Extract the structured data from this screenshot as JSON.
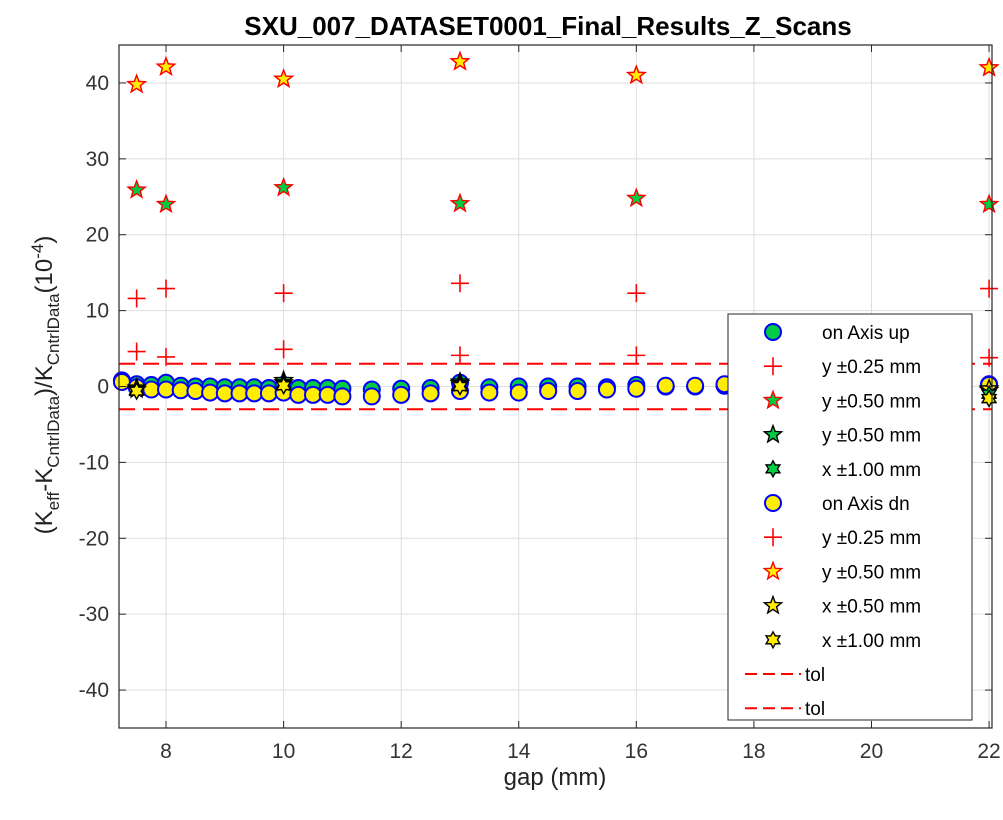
{
  "chart_data": {
    "type": "scatter",
    "title": "SXU_007_DATASET0001_Final_Results_Z_Scans",
    "xlabel": "gap (mm)",
    "ylabel": {
      "open": "(K",
      "sub1": "eff",
      "mid1": "-K",
      "sub2": "CntrlData",
      "mid2": ")/K",
      "sub3": "CntrlData",
      "mid3": "(10",
      "sup": "-4",
      "close": ")"
    },
    "xlim": [
      7.2,
      22.05
    ],
    "ylim": [
      -45,
      45
    ],
    "xticks": [
      8,
      10,
      12,
      14,
      16,
      18,
      20,
      22
    ],
    "yticks": [
      -40,
      -30,
      -20,
      -10,
      0,
      10,
      20,
      30,
      40
    ],
    "grid": true,
    "legend_position": "bottom-right",
    "colors": {
      "green": "#00cc44",
      "yellow": "#ffee00",
      "blue": "#0000ff",
      "red": "#ff0000"
    },
    "series": [
      {
        "name": "on Axis up",
        "marker": "circle",
        "fill": "#00cc44",
        "stroke": "#0000ff",
        "x": [
          7.25,
          7.5,
          7.75,
          8,
          8.25,
          8.5,
          8.75,
          9,
          9.25,
          9.5,
          9.75,
          10,
          10.25,
          10.5,
          10.75,
          11,
          11.5,
          12,
          12.5,
          13,
          13.5,
          14,
          14.5,
          15,
          15.5,
          16,
          16.5,
          17,
          17.5,
          18,
          18.5,
          19,
          19.5,
          20,
          20.5,
          21,
          21.5,
          22
        ],
        "y": [
          0.8,
          0.3,
          0.2,
          0.5,
          0.1,
          0,
          0,
          -0.1,
          -0.1,
          -0.1,
          -0.2,
          0.2,
          -0.2,
          -0.2,
          -0.2,
          -0.3,
          -0.4,
          -0.3,
          -0.2,
          0.5,
          -0.1,
          0,
          0,
          0,
          -0.1,
          0.2,
          0,
          0,
          0.1,
          0,
          0,
          0,
          0,
          0,
          0,
          0,
          0.1,
          0.3
        ]
      },
      {
        "name": "y ±0.25 mm",
        "marker": "plus",
        "fill": "none",
        "stroke": "#ff0000",
        "x": [
          7.5,
          8,
          10,
          13,
          16,
          22
        ],
        "y": [
          11.6,
          12.9,
          12.3,
          13.6,
          12.3,
          12.9
        ]
      },
      {
        "name": "y ±0.50 mm",
        "marker": "star",
        "fill": "#00cc44",
        "stroke": "#ff0000",
        "x": [
          7.5,
          8,
          10,
          13,
          16,
          22,
          7.5,
          8,
          10,
          13,
          16,
          22
        ],
        "y": [
          39.8,
          42.1,
          40.5,
          42.8,
          41.0,
          42.0,
          25.9,
          24.0,
          26.2,
          24.1,
          24.8,
          24.0
        ]
      },
      {
        "name": "y ±0.50 mm",
        "marker": "star",
        "fill": "#00cc44",
        "stroke": "#000000",
        "x": [
          7.5,
          10,
          13,
          22
        ],
        "y": [
          -0.2,
          0.8,
          0.6,
          -0.5
        ]
      },
      {
        "name": "x ±1.00 mm",
        "marker": "hexstar",
        "fill": "#00cc44",
        "stroke": "#000000",
        "x": [
          7.5,
          10,
          13,
          22
        ],
        "y": [
          -0.5,
          0.3,
          0.2,
          -1.0
        ]
      },
      {
        "name": "on Axis dn",
        "marker": "circle",
        "fill": "#ffee00",
        "stroke": "#0000ff",
        "x": [
          7.25,
          7.5,
          7.75,
          8,
          8.25,
          8.5,
          8.75,
          9,
          9.25,
          9.5,
          9.75,
          10,
          10.25,
          10.5,
          10.75,
          11,
          11.5,
          12,
          12.5,
          13,
          13.5,
          14,
          14.5,
          15,
          15.5,
          16,
          16.5,
          17,
          17.5,
          18,
          18.5,
          19,
          19.5,
          20,
          20.5,
          21,
          21.5,
          22
        ],
        "y": [
          0.6,
          -0.1,
          -0.4,
          -0.4,
          -0.5,
          -0.6,
          -0.8,
          -0.9,
          -0.9,
          -0.9,
          -0.9,
          -0.8,
          -1.1,
          -1.1,
          -1.1,
          -1.3,
          -1.3,
          -1.1,
          -0.9,
          -0.6,
          -0.8,
          -0.8,
          -0.6,
          -0.6,
          -0.4,
          -0.3,
          0.1,
          0.1,
          0.3,
          0.3,
          0.3,
          0.3,
          0.3,
          0.3,
          0.3,
          0.3,
          0.3,
          0.2
        ]
      },
      {
        "name": "y ±0.25 mm",
        "marker": "plus",
        "fill": "none",
        "stroke": "#ff0000",
        "x": [
          7.5,
          8,
          10,
          13,
          16,
          22
        ],
        "y": [
          4.6,
          3.9,
          4.9,
          4.1,
          4.1,
          3.8
        ]
      },
      {
        "name": "y ±0.50 mm",
        "marker": "star",
        "fill": "#ffee00",
        "stroke": "#ff0000",
        "x": [
          7.5,
          8,
          10,
          13,
          16,
          22
        ],
        "y": [
          39.8,
          42.1,
          40.5,
          42.8,
          41.0,
          42.0
        ]
      },
      {
        "name": "x ±0.50 mm",
        "marker": "star",
        "fill": "#ffee00",
        "stroke": "#000000",
        "x": [
          7.5,
          10,
          13,
          22
        ],
        "y": [
          -0.4,
          0.5,
          0.4,
          -0.3
        ]
      },
      {
        "name": "x ±1.00 mm",
        "marker": "hexstar",
        "fill": "#ffee00",
        "stroke": "#000000",
        "x": [
          7.5,
          10,
          13,
          22
        ],
        "y": [
          -0.6,
          0.1,
          0.0,
          -1.6
        ]
      },
      {
        "name": "tol",
        "marker": "dashline",
        "stroke": "#ff0000",
        "x": [
          7.2,
          22.05
        ],
        "y": [
          3,
          3
        ]
      },
      {
        "name": "tol",
        "marker": "dashline",
        "stroke": "#ff0000",
        "x": [
          7.2,
          22.05
        ],
        "y": [
          -3,
          -3
        ]
      }
    ]
  }
}
